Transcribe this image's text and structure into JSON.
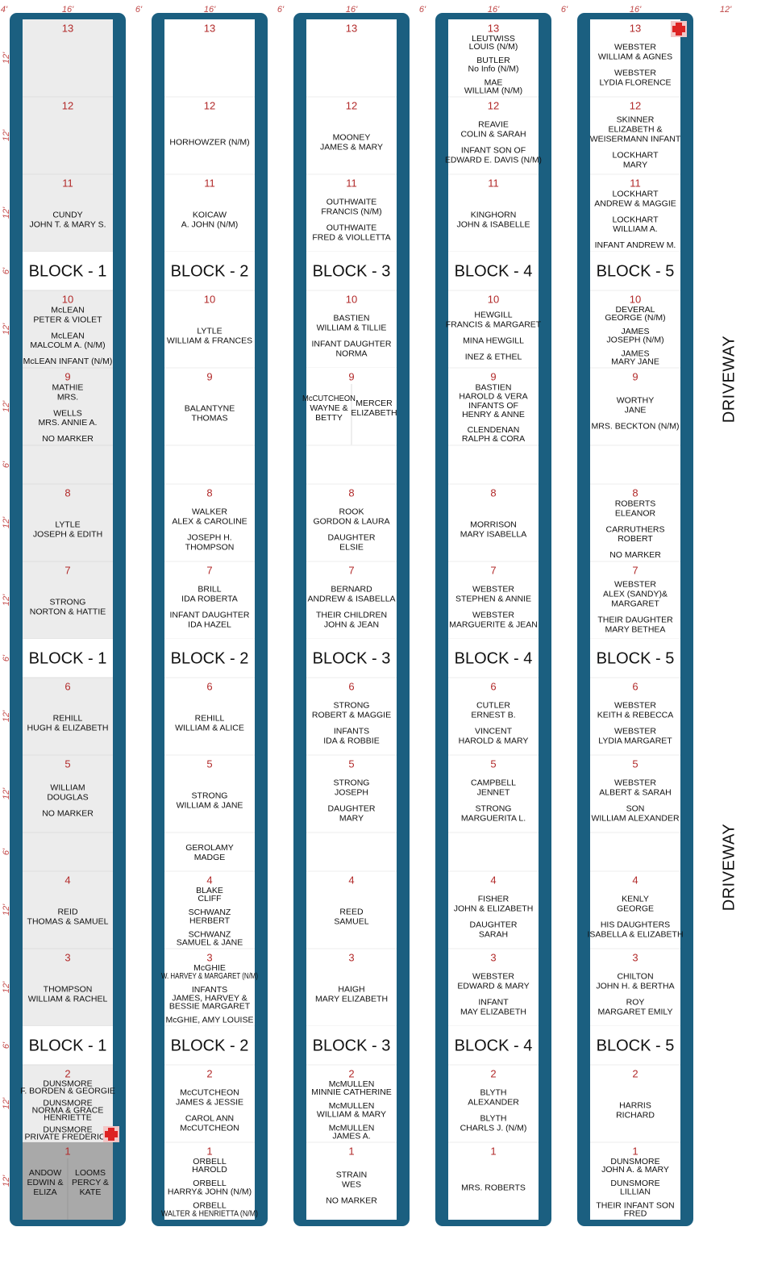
{
  "top_dimensions": [
    "4'",
    "16'",
    "6'",
    "16'",
    "6'",
    "16'",
    "6'",
    "16'",
    "6'",
    "16'",
    "12'"
  ],
  "row_dimensions": [
    "12'",
    "12'",
    "12'",
    "6'",
    "12'",
    "12'",
    "6'",
    "12'",
    "12'",
    "6'",
    "12'",
    "12'",
    "6'",
    "12'",
    "12'",
    "6'",
    "12'",
    "12'"
  ],
  "driveway": [
    "DRIVEWAY",
    "DRIVEWAY"
  ],
  "blocks": [
    {
      "label": "BLOCK - 1",
      "plots": [
        {
          "number": 13
        },
        {
          "number": 12
        },
        {
          "number": 11,
          "groups": [
            [
              "CUNDY",
              "JOHN T. & MARY S."
            ]
          ]
        },
        {
          "number": 10,
          "groups": [
            [
              "McLEAN",
              "PETER & VIOLET"
            ],
            [
              "McLEAN",
              "MALCOLM A. (N/M)"
            ],
            [
              "McLEAN INFANT (N/M)"
            ]
          ]
        },
        {
          "number": 9,
          "groups": [
            [
              "MATHIE",
              "MRS."
            ],
            [
              "WELLS",
              "MRS. ANNIE A."
            ],
            [
              "NO MARKER"
            ]
          ]
        },
        {
          "number": 8,
          "groups": [
            [
              "LYTLE",
              "JOSEPH & EDITH"
            ]
          ]
        },
        {
          "number": 7,
          "groups": [
            [
              "STRONG",
              "NORTON & HATTIE"
            ]
          ]
        },
        {
          "number": 6,
          "groups": [
            [
              "REHILL",
              "HUGH & ELIZABETH"
            ]
          ]
        },
        {
          "number": 5,
          "groups": [
            [
              "WILLIAM",
              "DOUGLAS"
            ],
            [
              "NO MARKER"
            ]
          ]
        },
        {
          "number": 4,
          "groups": [
            [
              "REID",
              "THOMAS & SAMUEL"
            ]
          ]
        },
        {
          "number": 3,
          "groups": [
            [
              "THOMPSON",
              "WILLIAM & RACHEL"
            ]
          ]
        },
        {
          "number": 2,
          "groups": [
            [
              "DUNSMORE",
              "F. BORDEN & GEORGIE"
            ],
            [
              "DUNSMORE",
              "NORMA & GRACE",
              "HENRIETTE"
            ],
            [
              "DUNSMORE",
              "PRIVATE FREDERICK"
            ]
          ]
        },
        {
          "number": 1,
          "split": [
            [
              "ANDOW",
              "EDWIN &",
              "ELIZA"
            ],
            [
              "LOOMS",
              "PERCY &",
              "KATE"
            ]
          ]
        }
      ]
    },
    {
      "label": "BLOCK - 2",
      "walkway_note": [
        "GEROLAMY",
        "MADGE"
      ],
      "plots": [
        {
          "number": 13
        },
        {
          "number": 12,
          "groups": [
            [
              "HORHOWZER (N/M)"
            ]
          ]
        },
        {
          "number": 11,
          "groups": [
            [
              "KOICAW",
              "A. JOHN (N/M)"
            ]
          ]
        },
        {
          "number": 10,
          "groups": [
            [
              "LYTLE",
              "WILLIAM & FRANCES"
            ]
          ]
        },
        {
          "number": 9,
          "groups": [
            [
              "BALANTYNE",
              "THOMAS"
            ]
          ]
        },
        {
          "number": 8,
          "groups": [
            [
              "WALKER",
              "ALEX & CAROLINE"
            ],
            [
              "JOSEPH H.",
              "THOMPSON"
            ]
          ]
        },
        {
          "number": 7,
          "groups": [
            [
              "BRILL",
              "IDA ROBERTA"
            ],
            [
              "INFANT DAUGHTER",
              "IDA HAZEL"
            ]
          ]
        },
        {
          "number": 6,
          "groups": [
            [
              "REHILL",
              "WILLIAM & ALICE"
            ]
          ]
        },
        {
          "number": 5,
          "groups": [
            [
              "STRONG",
              "WILLIAM & JANE"
            ]
          ]
        },
        {
          "number": 4,
          "groups": [
            [
              "BLAKE",
              "CLIFF"
            ],
            [
              "SCHWANZ",
              "HERBERT"
            ],
            [
              "SCHWANZ",
              "SAMUEL & JANE"
            ]
          ]
        },
        {
          "number": 3,
          "groups": [
            [
              "McGHIE",
              "W. HARVEY & MARGARET (N/M)"
            ],
            [
              "INFANTS",
              "JAMES, HARVEY &",
              "BESSIE MARGARET"
            ],
            [
              "McGHIE, AMY LOUISE"
            ]
          ]
        },
        {
          "number": 2,
          "groups": [
            [
              "McCUTCHEON",
              "JAMES & JESSIE"
            ],
            [
              "CAROL ANN",
              "McCUTCHEON"
            ]
          ]
        },
        {
          "number": 1,
          "groups": [
            [
              "ORBELL",
              "HAROLD"
            ],
            [
              "ORBELL",
              "HARRY& JOHN (N/M)"
            ],
            [
              "ORBELL",
              "WALTER & HENRIETTA (N/M)"
            ]
          ]
        }
      ]
    },
    {
      "label": "BLOCK - 3",
      "plots": [
        {
          "number": 13
        },
        {
          "number": 12,
          "groups": [
            [
              "MOONEY",
              "JAMES & MARY"
            ]
          ]
        },
        {
          "number": 11,
          "groups": [
            [
              "OUTHWAITE",
              "FRANCIS (N/M)"
            ],
            [
              "OUTHWAITE",
              "FRED & VIOLLETTA"
            ]
          ]
        },
        {
          "number": 10,
          "groups": [
            [
              "BASTIEN",
              "WILLIAM & TILLIE"
            ],
            [
              "INFANT DAUGHTER",
              "NORMA"
            ]
          ]
        },
        {
          "number": 9,
          "split": [
            [
              "McCUTCHEON",
              "WAYNE &",
              "BETTY"
            ],
            [
              "MERCER",
              "ELIZABETH"
            ]
          ]
        },
        {
          "number": 8,
          "groups": [
            [
              "ROOK",
              "GORDON & LAURA"
            ],
            [
              "DAUGHTER",
              "ELSIE"
            ]
          ]
        },
        {
          "number": 7,
          "groups": [
            [
              "BERNARD",
              "ANDREW & ISABELLA"
            ],
            [
              "THEIR CHILDREN",
              "JOHN & JEAN"
            ]
          ]
        },
        {
          "number": 6,
          "groups": [
            [
              "STRONG",
              "ROBERT & MAGGIE"
            ],
            [
              "INFANTS",
              "IDA & ROBBIE"
            ]
          ]
        },
        {
          "number": 5,
          "groups": [
            [
              "STRONG",
              "JOSEPH"
            ],
            [
              "DAUGHTER",
              "MARY"
            ]
          ]
        },
        {
          "number": 4,
          "groups": [
            [
              "REED",
              "SAMUEL"
            ]
          ]
        },
        {
          "number": 3,
          "groups": [
            [
              "HAIGH",
              "MARY ELIZABETH"
            ]
          ]
        },
        {
          "number": 2,
          "groups": [
            [
              "McMULLEN",
              "MINNIE CATHERINE"
            ],
            [
              "McMULLEN",
              "WILLIAM & MARY"
            ],
            [
              "McMULLEN",
              "JAMES A."
            ]
          ]
        },
        {
          "number": 1,
          "groups": [
            [
              "STRAIN",
              "WES"
            ],
            [
              "NO MARKER"
            ]
          ]
        }
      ]
    },
    {
      "label": "BLOCK - 4",
      "plots": [
        {
          "number": 13,
          "groups": [
            [
              "LEUTWISS",
              "LOUIS (N/M)"
            ],
            [
              "BUTLER",
              "No Info (N/M)"
            ],
            [
              "MAE",
              "WILLIAM (N/M)"
            ]
          ]
        },
        {
          "number": 12,
          "groups": [
            [
              "REAVIE",
              "COLIN & SARAH"
            ],
            [
              "INFANT SON OF",
              "EDWARD E. DAVIS (N/M)"
            ]
          ]
        },
        {
          "number": 11,
          "groups": [
            [
              "KINGHORN",
              "JOHN & ISABELLE"
            ]
          ]
        },
        {
          "number": 10,
          "groups": [
            [
              "HEWGILL",
              "FRANCIS & MARGARET"
            ],
            [
              "MINA HEWGILL"
            ],
            [
              "INEZ & ETHEL"
            ]
          ]
        },
        {
          "number": 9,
          "groups": [
            [
              "BASTIEN",
              "HAROLD & VERA",
              "INFANTS OF",
              "HENRY & ANNE"
            ],
            [
              "CLENDENAN",
              "RALPH & CORA"
            ]
          ]
        },
        {
          "number": 8,
          "groups": [
            [
              "MORRISON",
              "MARY ISABELLA"
            ]
          ]
        },
        {
          "number": 7,
          "groups": [
            [
              "WEBSTER",
              "STEPHEN & ANNIE"
            ],
            [
              "WEBSTER",
              "MARGUERITE & JEAN"
            ]
          ]
        },
        {
          "number": 6,
          "groups": [
            [
              "CUTLER",
              "ERNEST B."
            ],
            [
              "VINCENT",
              "HAROLD & MARY"
            ]
          ]
        },
        {
          "number": 5,
          "groups": [
            [
              "CAMPBELL",
              "JENNET"
            ],
            [
              "STRONG",
              "MARGUERITA L."
            ]
          ]
        },
        {
          "number": 4,
          "groups": [
            [
              "FISHER",
              "JOHN & ELIZABETH"
            ],
            [
              "DAUGHTER",
              "SARAH"
            ]
          ]
        },
        {
          "number": 3,
          "groups": [
            [
              "WEBSTER",
              "EDWARD & MARY"
            ],
            [
              "INFANT",
              "MAY ELIZABETH"
            ]
          ]
        },
        {
          "number": 2,
          "groups": [
            [
              "BLYTH",
              "ALEXANDER"
            ],
            [
              "BLYTH",
              "CHARLS J. (N/M)"
            ]
          ]
        },
        {
          "number": 1,
          "groups": [
            [
              "MRS. ROBERTS"
            ]
          ]
        }
      ]
    },
    {
      "label": "BLOCK - 5",
      "plots": [
        {
          "number": 13,
          "groups": [
            [
              "WEBSTER",
              "WILLIAM & AGNES"
            ],
            [
              "WEBSTER",
              "LYDIA FLORENCE"
            ]
          ]
        },
        {
          "number": 12,
          "groups": [
            [
              "SKINNER",
              "ELIZABETH &",
              "WEISERMANN INFANT"
            ],
            [
              "LOCKHART",
              "MARY"
            ]
          ]
        },
        {
          "number": 11,
          "groups": [
            [
              "LOCKHART",
              "ANDREW & MAGGIE"
            ],
            [
              "LOCKHART",
              "WILLIAM A."
            ],
            [
              "INFANT ANDREW M."
            ]
          ]
        },
        {
          "number": 10,
          "groups": [
            [
              "DEVERAL",
              "GEORGE (N/M)"
            ],
            [
              "JAMES",
              "JOSEPH (N/M)"
            ],
            [
              "JAMES",
              "MARY JANE"
            ]
          ]
        },
        {
          "number": 9,
          "groups": [
            [
              "WORTHY",
              "JANE"
            ],
            [
              "MRS. BECKTON (N/M)"
            ]
          ]
        },
        {
          "number": 8,
          "groups": [
            [
              "ROBERTS",
              "ELEANOR"
            ],
            [
              "CARRUTHERS",
              "ROBERT"
            ],
            [
              "NO MARKER"
            ]
          ]
        },
        {
          "number": 7,
          "groups": [
            [
              "WEBSTER",
              "ALEX (SANDY)&",
              "MARGARET"
            ],
            [
              "THEIR DAUGHTER",
              "MARY BETHEA"
            ]
          ]
        },
        {
          "number": 6,
          "groups": [
            [
              "WEBSTER",
              "KEITH & REBECCA"
            ],
            [
              "WEBSTER",
              "LYDIA MARGARET"
            ]
          ]
        },
        {
          "number": 5,
          "groups": [
            [
              "WEBSTER",
              "ALBERT & SARAH"
            ],
            [
              "SON",
              "WILLIAM ALEXANDER"
            ]
          ]
        },
        {
          "number": 4,
          "groups": [
            [
              "KENLY",
              "GEORGE"
            ],
            [
              "HIS DAUGHTERS",
              "ISABELLA & ELIZABETH"
            ]
          ]
        },
        {
          "number": 3,
          "groups": [
            [
              "CHILTON",
              "JOHN H. & BERTHA"
            ],
            [
              "ROY",
              "MARGARET EMILY"
            ]
          ]
        },
        {
          "number": 2,
          "groups": [
            [
              "HARRIS",
              "RICHARD"
            ]
          ]
        },
        {
          "number": 1,
          "groups": [
            [
              "DUNSMORE",
              "JOHN A. & MARY"
            ],
            [
              "DUNSMORE",
              "LILLIAN"
            ],
            [
              "THEIR INFANT SON",
              "FRED"
            ]
          ]
        }
      ]
    }
  ]
}
